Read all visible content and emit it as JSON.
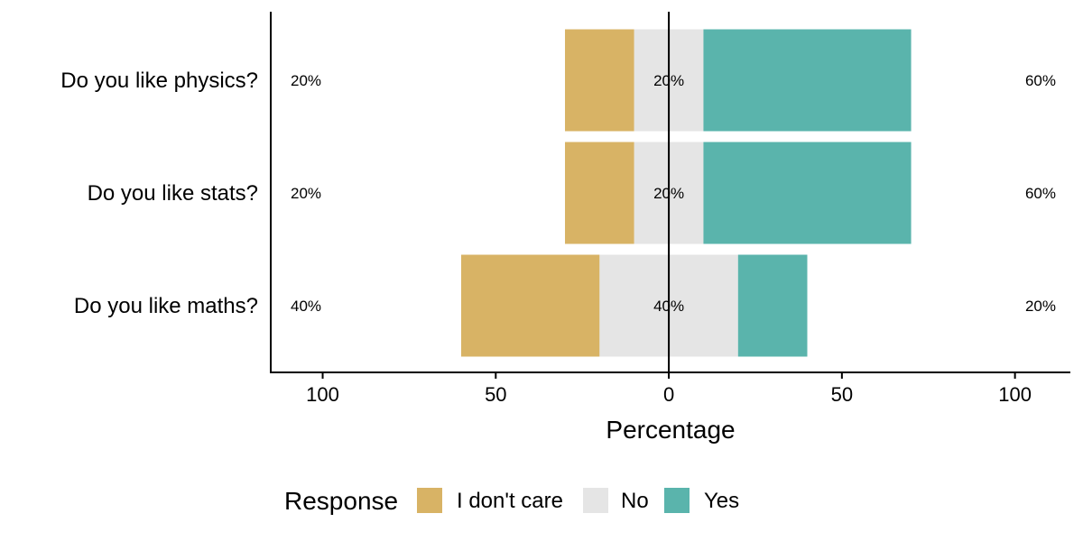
{
  "chart_data": {
    "type": "bar",
    "orientation": "horizontal",
    "stacking": "diverging",
    "categories": [
      "Do you like physics?",
      "Do you like stats?",
      "Do you like maths?"
    ],
    "series": [
      {
        "name": "I don't care",
        "values": [
          20,
          20,
          40
        ],
        "color": "#D8B365"
      },
      {
        "name": "No",
        "values": [
          20,
          20,
          40
        ],
        "color": "#E5E5E5"
      },
      {
        "name": "Yes",
        "values": [
          60,
          60,
          20
        ],
        "color": "#5AB4AC"
      }
    ],
    "left_labels": [
      "20%",
      "20%",
      "40%"
    ],
    "center_labels": [
      "20%",
      "20%",
      "40%"
    ],
    "right_labels": [
      "60%",
      "60%",
      "20%"
    ],
    "xlabel": "Percentage",
    "xlim": [
      -115,
      116
    ],
    "xticks": [
      {
        "value": -100,
        "label": "100"
      },
      {
        "value": -50,
        "label": "50"
      },
      {
        "value": 0,
        "label": "0"
      },
      {
        "value": 50,
        "label": "50"
      },
      {
        "value": 100,
        "label": "100"
      }
    ],
    "legend": {
      "title": "Response",
      "position": "bottom",
      "items": [
        "I don't care",
        "No",
        "Yes"
      ]
    },
    "grid": false
  }
}
